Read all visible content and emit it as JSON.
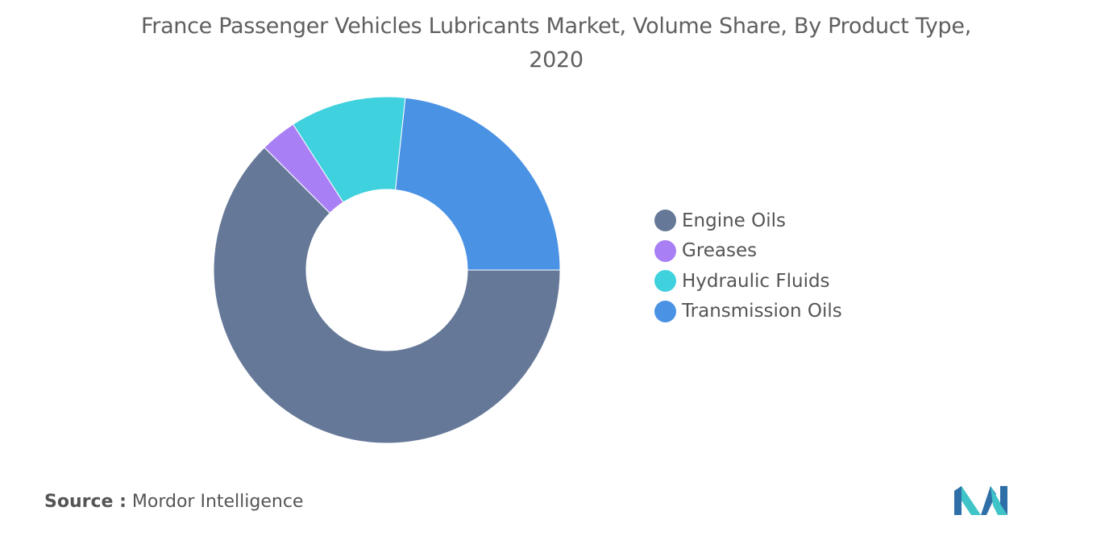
{
  "chart_data": {
    "type": "pie",
    "title": "France Passenger Vehicles Lubricants Market, Volume Share, By Product Type, 2020",
    "categories": [
      "Engine Oils",
      "Greases",
      "Hydraulic Fluids",
      "Transmission Oils"
    ],
    "values": [
      62.5,
      3.4,
      10.8,
      23.3
    ],
    "unit": "%",
    "donut": true,
    "legend_position": "right",
    "colors": [
      "#657898",
      "#a97ff5",
      "#3fd1dd",
      "#4a92e4"
    ]
  },
  "source": {
    "label": "Source :",
    "text": "Mordor Intelligence"
  },
  "logo": {
    "icon": "mordor-intelligence-logo",
    "colors": [
      "#2e6fa8",
      "#3fc4c8"
    ]
  }
}
